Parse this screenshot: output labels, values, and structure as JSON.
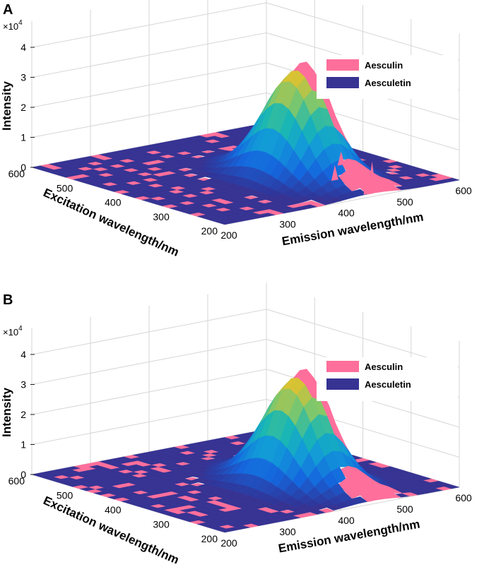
{
  "colors": {
    "aesculin": "#ff6f9b",
    "aesculetin": "#363393",
    "grid": "#d6d6d6",
    "axis": "#222222"
  },
  "chart_data": [
    {
      "panel_label": "A",
      "type": "surface3d",
      "title": "",
      "xlabel": "Emission wavelength/nm",
      "ylabel": "Excitation wavelength/nm",
      "zlabel": "Intensity",
      "z_multiplier": "×10",
      "z_exponent": "4",
      "xlim": [
        200,
        600
      ],
      "ylim": [
        200,
        600
      ],
      "zlim": [
        0,
        4
      ],
      "x_ticks": [
        "200",
        "300",
        "400",
        "500",
        "600"
      ],
      "y_ticks": [
        "200",
        "300",
        "400",
        "500",
        "600"
      ],
      "z_ticks": [
        "0",
        "1",
        "2",
        "3",
        "4"
      ],
      "legend": {
        "position": "top-right",
        "entries": [
          "Aesculin",
          "Aesculetin"
        ]
      },
      "series": [
        {
          "name": "Aesculin",
          "peak": {
            "emission": 455,
            "excitation": 345,
            "intensity": 3.8
          }
        },
        {
          "name": "Aesculetin",
          "peak": {
            "emission": 445,
            "excitation": 345,
            "intensity": 3.55
          }
        }
      ]
    },
    {
      "panel_label": "B",
      "type": "surface3d",
      "title": "",
      "xlabel": "Emission wavelength/nm",
      "ylabel": "Excitation wavelength/nm",
      "zlabel": "Intensity",
      "z_multiplier": "×10",
      "z_exponent": "4",
      "xlim": [
        200,
        600
      ],
      "ylim": [
        200,
        600
      ],
      "zlim": [
        0,
        4
      ],
      "x_ticks": [
        "200",
        "300",
        "400",
        "500",
        "600"
      ],
      "y_ticks": [
        "200",
        "300",
        "400",
        "500",
        "600"
      ],
      "z_ticks": [
        "0",
        "1",
        "2",
        "3",
        "4"
      ],
      "legend": {
        "position": "top-right",
        "entries": [
          "Aesculin",
          "Aesculetin"
        ]
      },
      "series": [
        {
          "name": "Aesculin",
          "peak": {
            "emission": 455,
            "excitation": 345,
            "intensity": 3.8
          }
        },
        {
          "name": "Aesculetin",
          "peak": {
            "emission": 445,
            "excitation": 345,
            "intensity": 3.55
          }
        }
      ]
    }
  ]
}
